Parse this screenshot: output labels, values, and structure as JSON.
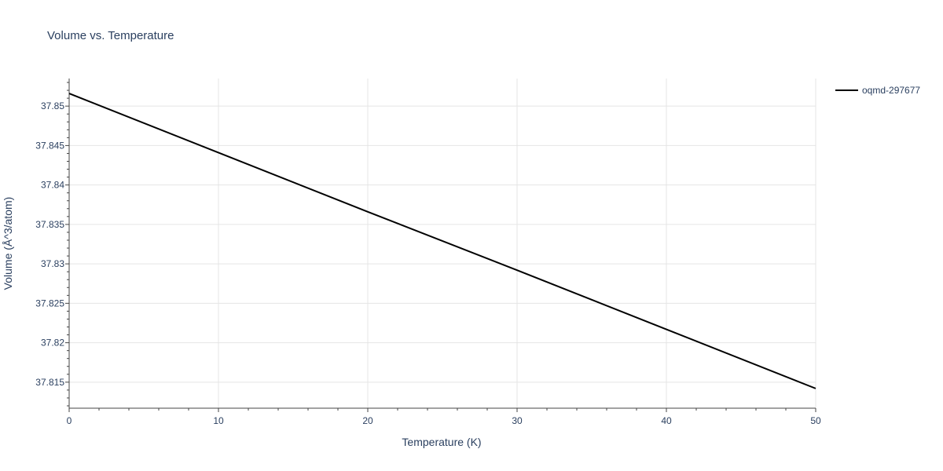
{
  "chart_data": {
    "type": "line",
    "title": "Volume vs. Temperature",
    "xlabel": "Temperature (K)",
    "ylabel": "Volume (Å^3/atom)",
    "xlim": [
      0,
      50
    ],
    "ylim": [
      37.8117,
      37.8535
    ],
    "x_ticks": [
      0,
      10,
      20,
      30,
      40,
      50
    ],
    "x_tick_labels": [
      "0",
      "10",
      "20",
      "30",
      "40",
      "50"
    ],
    "y_ticks": [
      37.815,
      37.82,
      37.825,
      37.83,
      37.835,
      37.84,
      37.845,
      37.85
    ],
    "y_tick_labels": [
      "37.815",
      "37.82",
      "37.825",
      "37.83",
      "37.835",
      "37.84",
      "37.845",
      "37.85"
    ],
    "grid": true,
    "legend_position": "top-right",
    "series": [
      {
        "name": "oqmd-297677",
        "color": "#000000",
        "x": [
          0,
          10,
          20,
          30,
          40,
          50
        ],
        "y": [
          37.8516,
          37.8441,
          37.8366,
          37.8292,
          37.8217,
          37.8142
        ]
      }
    ]
  }
}
